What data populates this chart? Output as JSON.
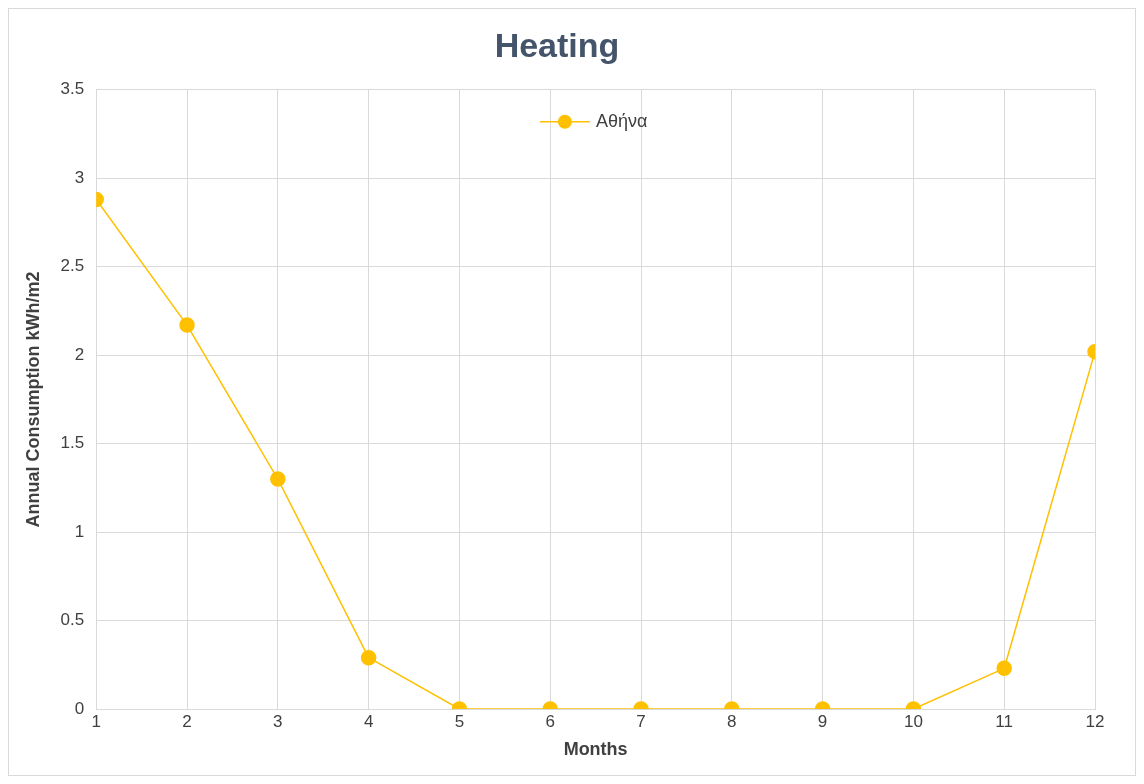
{
  "chart_data": {
    "type": "line",
    "title": "Heating",
    "xlabel": "Months",
    "ylabel": "Annual Consumption kWh/m2",
    "x": [
      1,
      2,
      3,
      4,
      5,
      6,
      7,
      8,
      9,
      10,
      11,
      12
    ],
    "series": [
      {
        "name": "Αθήνα",
        "color": "#ffc000",
        "values": [
          2.88,
          2.17,
          1.3,
          0.29,
          0,
          0,
          0,
          0,
          0,
          0,
          0.23,
          2.02
        ]
      }
    ],
    "xlim": [
      1,
      12
    ],
    "xticks": [
      1,
      2,
      3,
      4,
      5,
      6,
      7,
      8,
      9,
      10,
      11,
      12
    ],
    "ylim": [
      0,
      3.5
    ],
    "yticks": [
      0,
      0.5,
      1,
      1.5,
      2,
      2.5,
      3,
      3.5
    ],
    "grid": true,
    "legend": "top",
    "marker": "circle",
    "line_style": "solid"
  }
}
